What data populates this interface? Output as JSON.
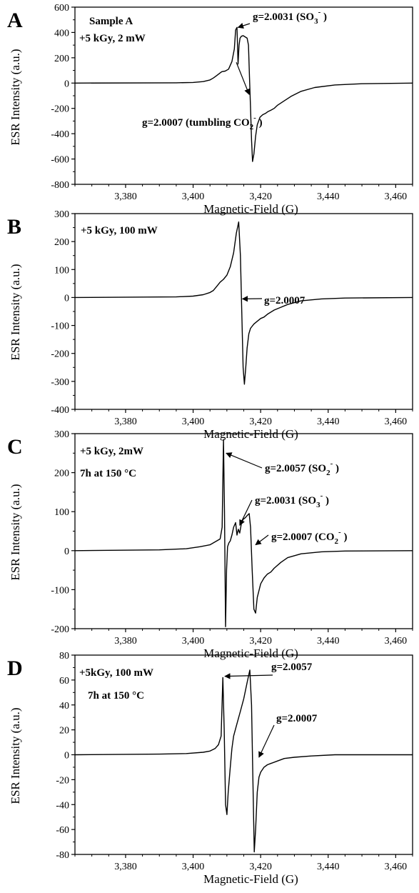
{
  "chart_data": [
    {
      "panel_label": "A",
      "type": "line",
      "xlabel": "Magnetic-Field (G)",
      "ylabel": "ESR Intensity (a.u.)",
      "xlim": [
        3365,
        3465
      ],
      "ylim": [
        -800,
        600
      ],
      "xticks": [
        3380,
        3400,
        3420,
        3440,
        3460
      ],
      "xtick_labels": [
        "3,380",
        "3,400",
        "3,420",
        "3,440",
        "3,460"
      ],
      "yticks": [
        -800,
        -600,
        -400,
        -200,
        0,
        200,
        400,
        600
      ],
      "ytick_labels": [
        "-800",
        "-600",
        "-400",
        "-200",
        "0",
        "200",
        "400",
        "600"
      ],
      "text_lines": [
        "Sample A",
        "+5 kGy, 2 mW"
      ],
      "annotations": [
        {
          "main": "g=2.0031 (SO",
          "sub": "3",
          "sup": "-",
          "close": ")",
          "arrow_to_x": 3413.3,
          "arrow_to_y": 440
        },
        {
          "main": "g=2.0007 (tumbling CO",
          "sub": "2",
          "sup": "-",
          "close": ")",
          "arrow_to_x": 3416.6,
          "arrow_to_y": -90
        }
      ],
      "series": [
        {
          "x": [
            3365,
            3395,
            3400,
            3403,
            3405,
            3406,
            3407,
            3408,
            3408.5,
            3409.5,
            3410.5,
            3411.5,
            3412.2,
            3412.6,
            3413.0,
            3413.3,
            3413.6,
            3413.9,
            3414.3,
            3414.8,
            3415.4,
            3416.0,
            3416.4,
            3416.7,
            3417.0,
            3417.3,
            3417.6,
            3418.0,
            3418.5,
            3419.0,
            3419.8,
            3420.6,
            3421.4,
            3422.2,
            3423.0,
            3424.0,
            3425.0,
            3427.0,
            3429.0,
            3432.0,
            3436.0,
            3442.0,
            3450.0,
            3465.0
          ],
          "y": [
            0,
            2,
            5,
            12,
            25,
            40,
            60,
            80,
            90,
            95,
            110,
            170,
            270,
            420,
            440,
            150,
            300,
            355,
            370,
            375,
            365,
            355,
            300,
            50,
            -200,
            -450,
            -620,
            -560,
            -420,
            -330,
            -270,
            -250,
            -240,
            -225,
            -215,
            -200,
            -175,
            -140,
            -105,
            -65,
            -35,
            -15,
            -5,
            0
          ]
        }
      ]
    },
    {
      "panel_label": "B",
      "type": "line",
      "xlabel": "Magnetic-Field (G)",
      "ylabel": "ESR Intensity (a.u.)",
      "xlim": [
        3365,
        3465
      ],
      "ylim": [
        -400,
        300
      ],
      "xticks": [
        3380,
        3400,
        3420,
        3440,
        3460
      ],
      "xtick_labels": [
        "3,380",
        "3,400",
        "3,420",
        "3,440",
        "3,460"
      ],
      "yticks": [
        -400,
        -300,
        -200,
        -100,
        0,
        100,
        200,
        300
      ],
      "ytick_labels": [
        "-400",
        "-300",
        "-200",
        "-100",
        "0",
        "100",
        "200",
        "300"
      ],
      "text_lines": [
        "+5 kGy, 100 mW"
      ],
      "annotations": [
        {
          "main": "g=2.0007",
          "sub": "",
          "sup": "",
          "close": "",
          "arrow_to_x": 3414.6,
          "arrow_to_y": -5
        }
      ],
      "series": [
        {
          "x": [
            3365,
            3395,
            3400,
            3403,
            3405,
            3406,
            3407,
            3408,
            3409,
            3410,
            3411,
            3412,
            3412.8,
            3413.5,
            3414.0,
            3414.4,
            3414.8,
            3415.2,
            3415.6,
            3416.0,
            3416.5,
            3417.0,
            3418.0,
            3419.0,
            3420.0,
            3421.0,
            3422.0,
            3424.0,
            3426.0,
            3428.0,
            3432.0,
            3438.0,
            3445.0,
            3465.0
          ],
          "y": [
            0,
            2,
            5,
            10,
            18,
            25,
            40,
            55,
            65,
            80,
            110,
            160,
            230,
            270,
            150,
            -50,
            -250,
            -310,
            -250,
            -180,
            -130,
            -110,
            -95,
            -85,
            -75,
            -70,
            -60,
            -45,
            -35,
            -25,
            -12,
            -5,
            -2,
            0
          ]
        }
      ]
    },
    {
      "panel_label": "C",
      "type": "line",
      "xlabel": "Magnetic-Field (G)",
      "ylabel": "ESR Intensity (a.u.)",
      "xlim": [
        3365,
        3465
      ],
      "ylim": [
        -200,
        300
      ],
      "xticks": [
        3380,
        3400,
        3420,
        3440,
        3460
      ],
      "xtick_labels": [
        "3,380",
        "3,400",
        "3,420",
        "3,440",
        "3,460"
      ],
      "yticks": [
        -200,
        -100,
        0,
        100,
        200,
        300
      ],
      "ytick_labels": [
        "-200",
        "-100",
        "0",
        "100",
        "200",
        "300"
      ],
      "text_lines": [
        "+5 kGy, 2mW",
        "7h at 150 °C"
      ],
      "annotations": [
        {
          "main": "g=2.0057 (SO",
          "sub": "2",
          "sup": "-",
          "close": ")",
          "arrow_to_x": 3409.8,
          "arrow_to_y": 250
        },
        {
          "main": "g=2.0031 (SO",
          "sub": "3",
          "sup": "-",
          "close": ")",
          "arrow_to_x": 3413.8,
          "arrow_to_y": 65
        },
        {
          "main": "g=2.0007 (CO",
          "sub": "2",
          "sup": "-",
          "close": ")",
          "arrow_to_x": 3418.5,
          "arrow_to_y": 15
        }
      ],
      "series": [
        {
          "x": [
            3365,
            3390,
            3398,
            3402,
            3405,
            3407,
            3408,
            3408.6,
            3409.0,
            3409.3,
            3409.6,
            3409.9,
            3410.2,
            3410.6,
            3411.0,
            3411.5,
            3412.0,
            3412.6,
            3413.0,
            3413.4,
            3413.8,
            3414.3,
            3414.8,
            3415.5,
            3416.0,
            3416.6,
            3417.0,
            3417.5,
            3418.0,
            3418.5,
            3419.0,
            3420.0,
            3421.0,
            3422.0,
            3423.0,
            3424.0,
            3426.0,
            3428.0,
            3432.0,
            3438.0,
            3445.0,
            3465.0
          ],
          "y": [
            0,
            2,
            5,
            10,
            15,
            25,
            30,
            60,
            285,
            100,
            -195,
            -50,
            10,
            20,
            25,
            40,
            60,
            72,
            40,
            55,
            45,
            70,
            80,
            85,
            90,
            95,
            60,
            -50,
            -150,
            -160,
            -120,
            -85,
            -70,
            -60,
            -55,
            -45,
            -30,
            -18,
            -8,
            -3,
            -1,
            0
          ]
        }
      ]
    },
    {
      "panel_label": "D",
      "type": "line",
      "xlabel": "Magnetic-Field (G)",
      "ylabel": "ESR Intensity (a.u.)",
      "xlim": [
        3365,
        3465
      ],
      "ylim": [
        -80,
        80
      ],
      "xticks": [
        3380,
        3400,
        3420,
        3440,
        3460
      ],
      "xtick_labels": [
        "3,380",
        "3,400",
        "3,420",
        "3,440",
        "3,460"
      ],
      "yticks": [
        -80,
        -60,
        -40,
        -20,
        0,
        20,
        40,
        60,
        80
      ],
      "ytick_labels": [
        "-80",
        "-60",
        "-40",
        "-20",
        "0",
        "20",
        "40",
        "60",
        "80"
      ],
      "text_lines": [
        "+5kGy, 100 mW",
        "7h at 150 °C"
      ],
      "annotations": [
        {
          "main": "g=2.0057",
          "sub": "",
          "sup": "",
          "close": "",
          "arrow_to_x": 3409.4,
          "arrow_to_y": 63
        },
        {
          "main": "g=2.0007",
          "sub": "",
          "sup": "",
          "close": "",
          "arrow_to_x": 3419.5,
          "arrow_to_y": -2
        }
      ],
      "series": [
        {
          "x": [
            3365,
            3390,
            3398,
            3403,
            3405,
            3406.5,
            3407.5,
            3408.3,
            3408.8,
            3409.2,
            3409.6,
            3410.0,
            3410.4,
            3411.0,
            3411.5,
            3412.0,
            3413.0,
            3414.0,
            3415.0,
            3416.0,
            3416.8,
            3417.3,
            3417.7,
            3418.1,
            3418.5,
            3419.0,
            3419.5,
            3420.0,
            3421.0,
            3422.0,
            3423.0,
            3425.0,
            3427.0,
            3430.0,
            3435.0,
            3442.0,
            3450.0,
            3465.0
          ],
          "y": [
            0,
            0.5,
            1,
            2,
            3,
            5,
            8,
            15,
            62,
            20,
            -40,
            -48,
            -30,
            -10,
            5,
            15,
            25,
            35,
            45,
            58,
            68,
            40,
            -20,
            -78,
            -60,
            -30,
            -18,
            -14,
            -10,
            -8,
            -7,
            -5,
            -3,
            -2,
            -1,
            0,
            0,
            0
          ]
        }
      ]
    }
  ]
}
